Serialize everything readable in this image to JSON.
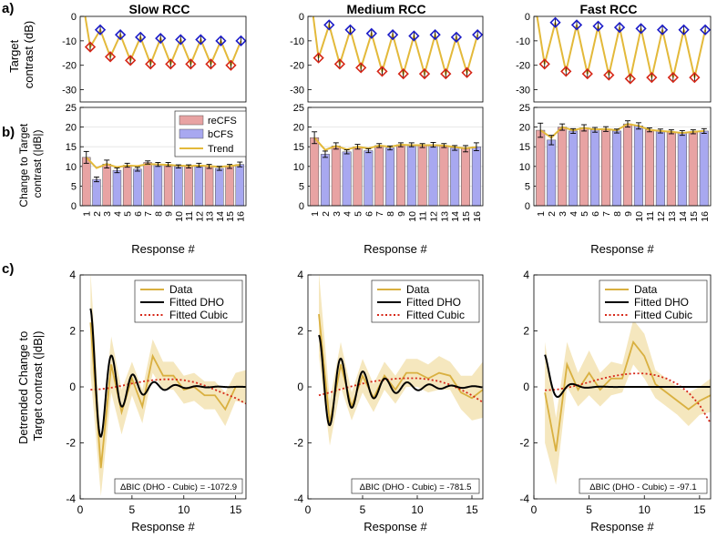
{
  "figure": {
    "panel_labels": [
      "a)",
      "b)",
      "c)"
    ],
    "column_titles": [
      "Slow RCC",
      "Medium RCC",
      "Fast RCC"
    ],
    "row_a_ylabel": [
      "Target",
      "contrast (dB)"
    ],
    "row_b_ylabel": [
      "Change to Target",
      "contrast (|dB|)"
    ],
    "row_c_ylabel": [
      "Detrended Change to",
      "Target contrast (|dB|)"
    ],
    "xlabel": "Response #",
    "legend_b": [
      "reCFS",
      "bCFS",
      "Trend"
    ],
    "legend_c": [
      "Data",
      "Fitted DHO",
      "Fitted Cubic"
    ],
    "bic_label": "ΔBIC (DHO - Cubic) = ",
    "colors": {
      "recfs": "#e8a3a3",
      "bcfs": "#a8a8f0",
      "trend": "#e3b93a",
      "data": "#d9b040",
      "dho": "#000000",
      "cubic": "#d62718",
      "red_marker": "#d62718",
      "blue_marker": "#1c1cc8",
      "band": "#f3e3b3"
    }
  },
  "chart_data": [
    {
      "panel": "a",
      "type": "line",
      "column": "Slow RCC",
      "title": "Slow RCC",
      "ylabel": "Target contrast (dB)",
      "ylim": [
        -35,
        0
      ],
      "yticks": [
        0,
        -10,
        -20,
        -30
      ],
      "xlim": [
        0,
        16.5
      ],
      "x": [
        1,
        2,
        3,
        4,
        5,
        6,
        7,
        8,
        9,
        10,
        11,
        12,
        13,
        14,
        15,
        16
      ],
      "values": [
        -12.5,
        -5.5,
        -16.5,
        -7.5,
        -18,
        -8.5,
        -19.5,
        -9,
        -19.5,
        -9.5,
        -19.5,
        -9.5,
        -19.5,
        -10,
        -20,
        -10
      ],
      "trend_start": [
        0.5,
        0
      ],
      "marker_pattern": "odd=red (reCFS), even=blue (bCFS)"
    },
    {
      "panel": "a",
      "type": "line",
      "column": "Medium RCC",
      "ylim": [
        -35,
        0
      ],
      "yticks": [
        0,
        -10,
        -20,
        -30
      ],
      "xlim": [
        0,
        16.5
      ],
      "x": [
        1,
        2,
        3,
        4,
        5,
        6,
        7,
        8,
        9,
        10,
        11,
        12,
        13,
        14,
        15,
        16
      ],
      "values": [
        -17,
        -3.5,
        -19.5,
        -5.5,
        -21,
        -7,
        -22.5,
        -7.5,
        -23.5,
        -8,
        -23.5,
        -7.5,
        -23.5,
        -8.5,
        -23,
        -7.5
      ],
      "trend_start": [
        0.5,
        0
      ]
    },
    {
      "panel": "a",
      "type": "line",
      "column": "Fast RCC",
      "ylim": [
        -35,
        0
      ],
      "yticks": [
        0,
        -10,
        -20,
        -30
      ],
      "xlim": [
        0,
        16.5
      ],
      "x": [
        1,
        2,
        3,
        4,
        5,
        6,
        7,
        8,
        9,
        10,
        11,
        12,
        13,
        14,
        15,
        16
      ],
      "values": [
        -19.5,
        -2.5,
        -22.5,
        -3.5,
        -23.5,
        -4,
        -24,
        -4.5,
        -25.5,
        -5,
        -25,
        -5.5,
        -25,
        -5.5,
        -25,
        -5.5
      ],
      "trend_start": [
        0.3,
        0
      ]
    },
    {
      "panel": "b",
      "type": "bar",
      "column": "Slow RCC",
      "ylabel": "Change to Target contrast (|dB|)",
      "ylim": [
        0,
        25
      ],
      "yticks": [
        0,
        5,
        10,
        15,
        20,
        25
      ],
      "xlabel": "Response #",
      "categories": [
        "1",
        "2",
        "3",
        "4",
        "5",
        "6",
        "7",
        "8",
        "9",
        "10",
        "11",
        "12",
        "13",
        "14",
        "15",
        "16"
      ],
      "values": [
        12.3,
        6.7,
        10.6,
        9,
        10.3,
        9.3,
        11,
        10.5,
        10.5,
        10,
        10,
        10.3,
        10,
        9.5,
        10,
        10.5
      ],
      "errors": [
        1.5,
        0.6,
        1,
        0.6,
        0.5,
        0.5,
        0.4,
        0.5,
        0.5,
        0.4,
        0.4,
        0.5,
        0.5,
        0.5,
        0.5,
        0.6
      ],
      "trend": [
        12.3,
        9.6,
        10.6,
        9.8,
        10.2,
        10.1,
        10.6,
        10.5,
        10.4,
        10.2,
        10.1,
        10.2,
        10.1,
        9.9,
        10.1,
        10.4
      ]
    },
    {
      "panel": "b",
      "type": "bar",
      "column": "Medium RCC",
      "ylim": [
        0,
        25
      ],
      "yticks": [
        0,
        5,
        10,
        15,
        20,
        25
      ],
      "xlabel": "Response #",
      "categories": [
        "1",
        "2",
        "3",
        "4",
        "5",
        "6",
        "7",
        "8",
        "9",
        "10",
        "11",
        "12",
        "13",
        "14",
        "15",
        "16"
      ],
      "values": [
        17.3,
        13.1,
        15.2,
        13.7,
        15,
        14,
        15.3,
        14.7,
        15.5,
        15.5,
        15.3,
        15.5,
        15.3,
        14.7,
        14.5,
        15
      ],
      "errors": [
        1.5,
        0.8,
        0.8,
        0.5,
        0.6,
        0.5,
        0.5,
        0.5,
        0.5,
        0.5,
        0.5,
        0.6,
        0.5,
        0.6,
        0.8,
        1
      ],
      "trend": [
        17.3,
        14.2,
        15.2,
        14.3,
        15,
        14.6,
        15.3,
        15,
        15.5,
        15.4,
        15.4,
        15.4,
        15.3,
        14.9,
        14.6,
        14.9
      ]
    },
    {
      "panel": "b",
      "type": "bar",
      "column": "Fast RCC",
      "ylim": [
        0,
        25
      ],
      "yticks": [
        0,
        5,
        10,
        15,
        20,
        25
      ],
      "xlabel": "Response #",
      "categories": [
        "1",
        "2",
        "3",
        "4",
        "5",
        "6",
        "7",
        "8",
        "9",
        "10",
        "11",
        "12",
        "13",
        "14",
        "15",
        "16"
      ],
      "values": [
        19.2,
        16.7,
        20,
        19,
        19.8,
        19.3,
        19.5,
        19,
        20.8,
        20.3,
        19.3,
        19,
        18.8,
        18.5,
        18.8,
        19
      ],
      "errors": [
        1.8,
        1.2,
        0.8,
        0.6,
        0.8,
        0.6,
        0.6,
        0.5,
        0.8,
        0.8,
        0.5,
        0.5,
        0.5,
        0.6,
        0.5,
        0.6
      ],
      "trend": [
        19.2,
        17.3,
        20,
        19.2,
        19.8,
        19.4,
        19.5,
        19.2,
        20.8,
        20.3,
        19.3,
        19,
        18.8,
        18.5,
        18.8,
        19
      ]
    },
    {
      "panel": "c",
      "type": "line",
      "column": "Slow RCC",
      "ylabel": "Detrended Change to Target contrast (|dB|)",
      "xlabel": "Response #",
      "xlim": [
        0,
        16
      ],
      "ylim": [
        -4,
        4
      ],
      "xticks": [
        0,
        5,
        10,
        15
      ],
      "yticks": [
        -4,
        -2,
        0,
        2,
        4
      ],
      "data_x": [
        1,
        2,
        3,
        4,
        5,
        6,
        7,
        8,
        9,
        10,
        11,
        12,
        13,
        14,
        15,
        16
      ],
      "data_y": [
        2.3,
        -2.9,
        0.8,
        -0.9,
        0.3,
        -0.7,
        1.1,
        0.4,
        0.4,
        -0.1,
        0,
        -0.3,
        -0.3,
        -0.8,
        0,
        0
      ],
      "data_err": [
        1.8,
        1,
        1,
        0.8,
        0.6,
        0.6,
        0.6,
        0.5,
        0.5,
        0.5,
        0.5,
        0.5,
        0.5,
        0.6,
        0.5,
        0.6
      ],
      "dho": {
        "A": 2.8,
        "damping": 0.45,
        "omega": 3.05,
        "decay": 0.38
      },
      "cubic_y": [
        -0.1,
        -0.08,
        -0.03,
        0.04,
        0.12,
        0.19,
        0.24,
        0.27,
        0.27,
        0.24,
        0.17,
        0.05,
        -0.1,
        -0.25,
        -0.4,
        -0.6
      ],
      "bic": "-1072.9"
    },
    {
      "panel": "c",
      "type": "line",
      "column": "Medium RCC",
      "xlim": [
        0,
        16
      ],
      "ylim": [
        -4,
        4
      ],
      "xticks": [
        0,
        5,
        10,
        15
      ],
      "yticks": [
        -4,
        -2,
        0,
        2,
        4
      ],
      "xlabel": "Response #",
      "data_x": [
        1,
        2,
        3,
        4,
        5,
        6,
        7,
        8,
        9,
        10,
        11,
        12,
        13,
        14,
        15,
        16
      ],
      "data_y": [
        2.6,
        -1.3,
        0.8,
        -0.7,
        0.4,
        -0.4,
        0.4,
        -0.1,
        0.5,
        0.5,
        0.3,
        0.5,
        0.4,
        -0.2,
        -0.4,
        -0.1
      ],
      "data_err": [
        1.5,
        0.8,
        0.8,
        0.5,
        0.6,
        0.5,
        0.5,
        0.5,
        0.5,
        0.5,
        0.5,
        0.6,
        0.5,
        0.6,
        0.8,
        1
      ],
      "dho": {
        "A": 1.85,
        "damping": 0.3,
        "omega": 3.1,
        "decay": 0.22
      },
      "cubic_y": [
        -0.3,
        -0.2,
        -0.08,
        0.02,
        0.12,
        0.2,
        0.25,
        0.29,
        0.31,
        0.31,
        0.27,
        0.2,
        0.08,
        -0.1,
        -0.3,
        -0.55
      ],
      "bic": "-781.5"
    },
    {
      "panel": "c",
      "type": "line",
      "column": "Fast RCC",
      "xlim": [
        0,
        16
      ],
      "ylim": [
        -4,
        4
      ],
      "xticks": [
        0,
        5,
        10,
        15
      ],
      "yticks": [
        -4,
        -2,
        0,
        2,
        4
      ],
      "xlabel": "Response #",
      "data_x": [
        1,
        2,
        3,
        4,
        5,
        6,
        7,
        8,
        9,
        10,
        11,
        12,
        13,
        14,
        15,
        16
      ],
      "data_y": [
        -0.2,
        -2.3,
        0.8,
        -0.1,
        0.5,
        -0.1,
        0.3,
        0.3,
        1.6,
        1.1,
        0.1,
        -0.2,
        -0.5,
        -0.8,
        -0.5,
        -0.3
      ],
      "data_err": [
        1.8,
        1.2,
        0.8,
        0.6,
        0.8,
        0.6,
        0.6,
        0.5,
        0.8,
        0.8,
        0.5,
        0.5,
        0.5,
        0.6,
        0.5,
        0.6
      ],
      "dho": {
        "A": 1.15,
        "damping": 0.95,
        "omega": 2.4,
        "decay": 0.6
      },
      "cubic_y": [
        -0.12,
        -0.1,
        -0.03,
        0.06,
        0.17,
        0.28,
        0.37,
        0.44,
        0.48,
        0.48,
        0.42,
        0.3,
        0.1,
        -0.2,
        -0.65,
        -1.3
      ],
      "bic": "-97.1"
    }
  ]
}
